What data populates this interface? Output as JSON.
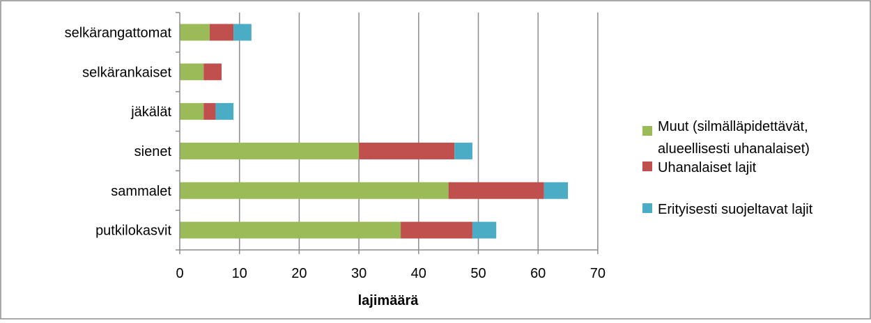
{
  "chart_data": {
    "type": "bar",
    "orientation": "horizontal",
    "stacked": true,
    "categories": [
      "putkilokasvit",
      "sammalet",
      "sienet",
      "jäkälät",
      "selkärankaiset",
      "selkärangattomat"
    ],
    "series": [
      {
        "name": "Muut (silmälläpidettävät, alueellisesti uhanalaiset)",
        "legend_lines": [
          "Muut (silmälläpidettävät,",
          "alueellisesti uhanalaiset)"
        ],
        "color": "#9BBB59",
        "values": [
          37,
          45,
          30,
          4,
          4,
          5
        ]
      },
      {
        "name": "Uhanalaiset lajit",
        "legend_lines": [
          "Uhanalaiset lajit"
        ],
        "color": "#C0504D",
        "values": [
          12,
          16,
          16,
          2,
          3,
          4
        ]
      },
      {
        "name": "Erityisesti suojeltavat lajit",
        "legend_lines": [
          "Erityisesti suojeltavat lajit"
        ],
        "color": "#4BACC6",
        "values": [
          4,
          4,
          3,
          3,
          0,
          3
        ]
      }
    ],
    "xlabel": "lajimäärä",
    "xlim": [
      0,
      70
    ],
    "xticks": [
      0,
      10,
      20,
      30,
      40,
      50,
      60,
      70
    ],
    "grid": true,
    "legend_position": "right"
  }
}
